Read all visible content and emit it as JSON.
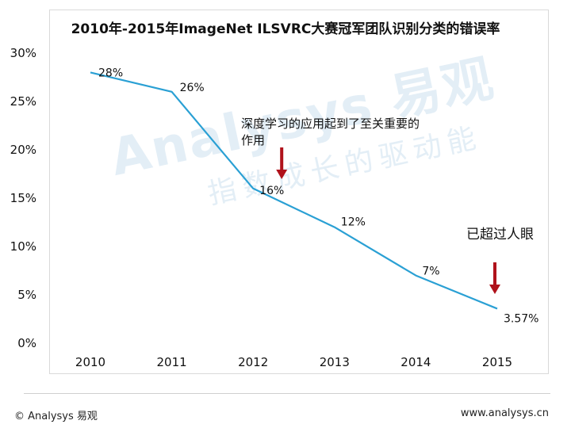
{
  "chart_data": {
    "type": "line",
    "title": "2010年-2015年ImageNet ILSVRC大赛冠军团队识别分类的错误率",
    "xlabel": "",
    "ylabel": "",
    "categories": [
      "2010",
      "2011",
      "2012",
      "2013",
      "2014",
      "2015"
    ],
    "series": [
      {
        "name": "错误率",
        "values": [
          28,
          26,
          16,
          12,
          7,
          3.57
        ],
        "labels": [
          "28%",
          "26%",
          "16%",
          "12%",
          "7%",
          "3.57%"
        ],
        "color": "#2aa0d4"
      }
    ],
    "ylim": [
      0,
      30
    ],
    "yticks": [
      "0%",
      "5%",
      "10%",
      "15%",
      "20%",
      "25%",
      "30%"
    ],
    "grid": false,
    "annotations": [
      {
        "text": "深度学习的应用起到了至关重要的作用",
        "year": "2012",
        "arrow_color": "#b0121b"
      },
      {
        "text": "已超过人眼",
        "year": "2015",
        "arrow_color": "#b0121b"
      }
    ]
  },
  "watermark": {
    "main": "Analysys 易观",
    "sub": "指数成长的驱动能"
  },
  "footer": {
    "left": "© Analysys 易观",
    "right": "www.analysys.cn"
  }
}
